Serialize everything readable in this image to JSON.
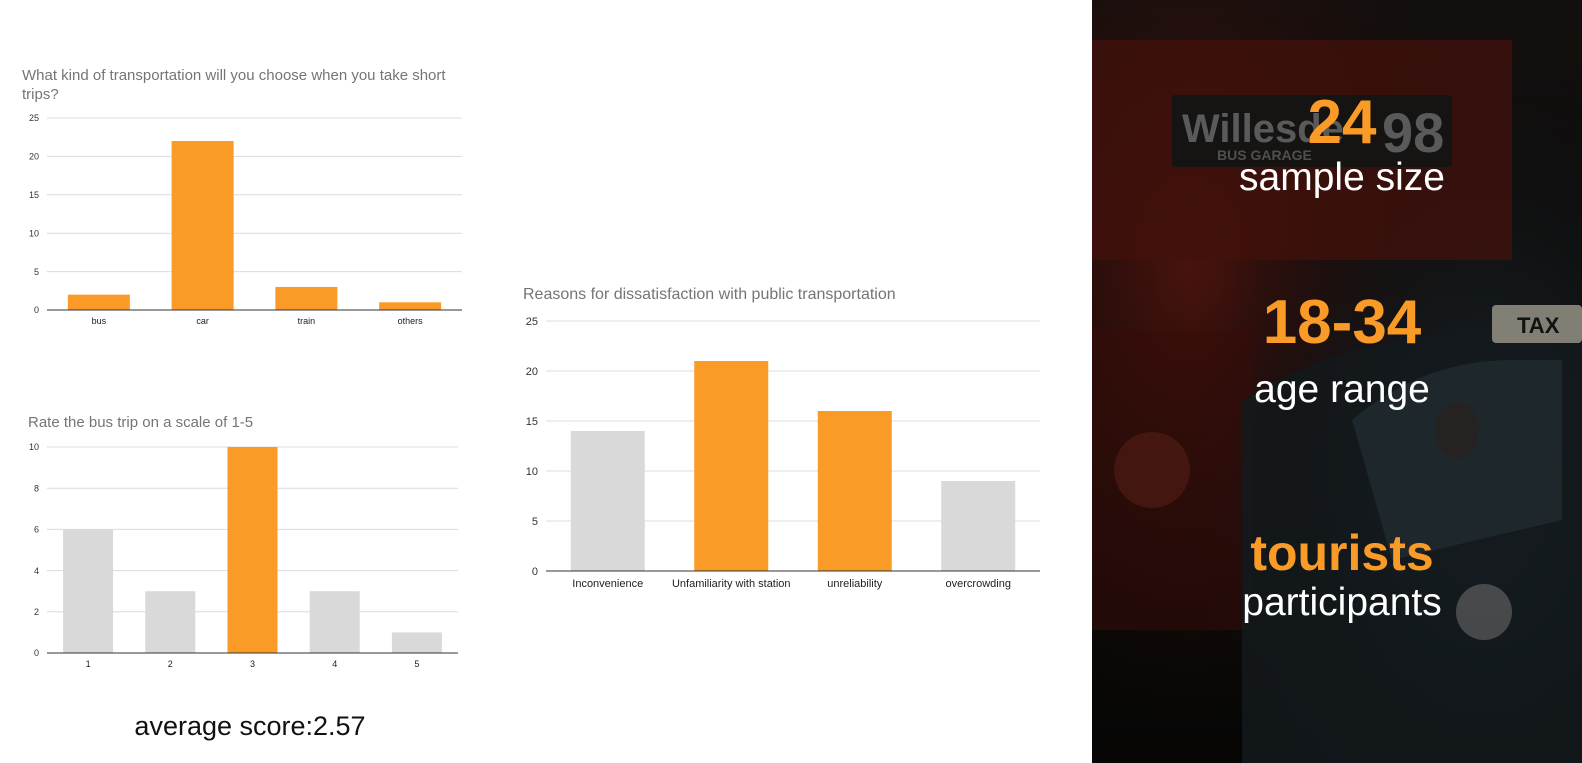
{
  "chart_data": [
    {
      "id": "transport",
      "type": "bar",
      "title": "What kind of transportation will you choose when you take short trips?",
      "categories": [
        "bus",
        "car",
        "train",
        "others"
      ],
      "values": [
        2,
        22,
        3,
        1
      ],
      "ylim": [
        0,
        25
      ],
      "yticks": [
        0,
        5,
        10,
        15,
        20,
        25
      ],
      "grid": true,
      "bar_color": "#f99b26",
      "highlight_color": "#f99b26",
      "highlight": [
        true,
        true,
        true,
        true
      ],
      "legend": "none"
    },
    {
      "id": "rating",
      "type": "bar",
      "title": "Rate the bus trip on a scale of 1-5",
      "categories": [
        "1",
        "2",
        "3",
        "4",
        "5"
      ],
      "values": [
        6,
        3,
        10,
        3,
        1
      ],
      "ylim": [
        0,
        10
      ],
      "yticks": [
        0,
        2,
        4,
        6,
        8,
        10
      ],
      "grid": true,
      "bar_color": "#d9d9d9",
      "highlight_color": "#f99b26",
      "highlight": [
        false,
        false,
        true,
        false,
        false
      ],
      "legend": "none"
    },
    {
      "id": "dissatisfaction",
      "type": "bar",
      "title": "Reasons for dissatisfaction with public transportation",
      "categories": [
        "Inconvenience",
        "Unfamiliarity with station",
        "unreliability",
        "overcrowding"
      ],
      "values": [
        14,
        21,
        16,
        9
      ],
      "ylim": [
        0,
        25
      ],
      "yticks": [
        0,
        5,
        10,
        15,
        20,
        25
      ],
      "grid": true,
      "bar_color": "#d9d9d9",
      "highlight_color": "#f99b26",
      "highlight": [
        false,
        true,
        true,
        false
      ],
      "legend": "none"
    }
  ],
  "average_score": "average score:2.57",
  "stats": [
    {
      "value": "24",
      "label": "sample size"
    },
    {
      "value": "18-34",
      "label": "age range"
    },
    {
      "value": "tourists",
      "label": "participants"
    }
  ],
  "photo": {
    "sign_text": "Willesde",
    "sign_number": "98",
    "sign_subtext": "BUS GARAGE",
    "taxi_text": "TAX"
  },
  "colors": {
    "accent": "#f99b26",
    "muted_bar": "#d9d9d9",
    "grid": "#dcdcdc",
    "axis": "#333333",
    "title": "#757575"
  }
}
